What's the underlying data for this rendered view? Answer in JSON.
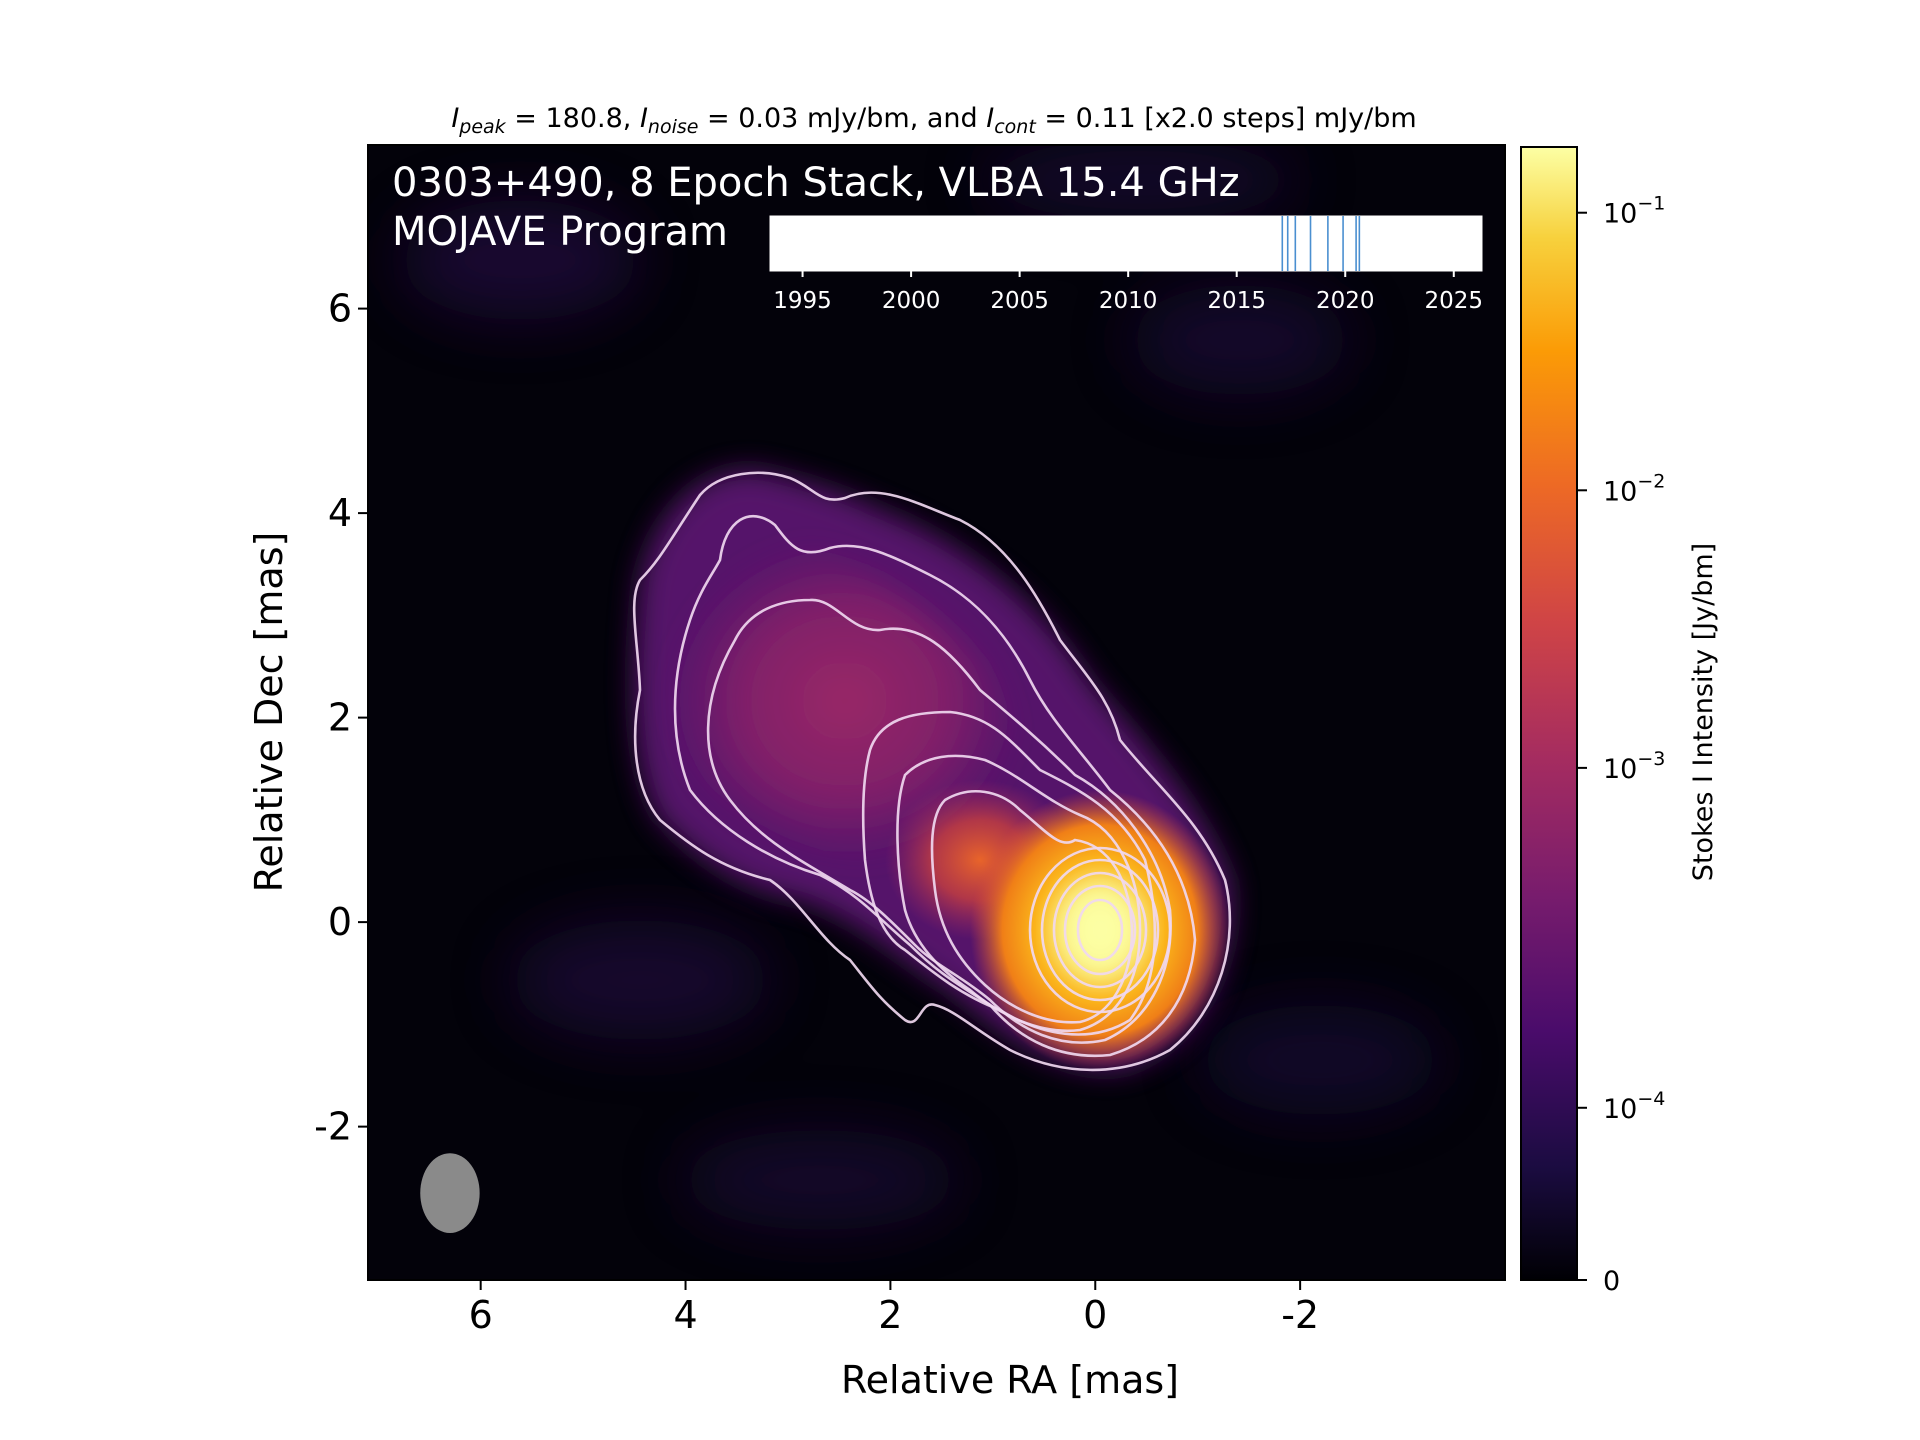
{
  "chart_data": {
    "type": "heatmap",
    "title_parts": {
      "peak_sub": "peak",
      "peak_value": " = 180.8, ",
      "noise_sub": "noise",
      "noise_value": " = 0.03 mJy/bm, and ",
      "cont_sub": "cont",
      "cont_value": " = 0.11 [x2.0 steps] mJy/bm"
    },
    "annotation_line1": "0303+490, 8 Epoch Stack, VLBA 15.4 GHz",
    "annotation_line2": "MOJAVE Program",
    "xlabel": "Relative RA [mas]",
    "ylabel": "Relative Dec [mas]",
    "xlim": [
      7.1,
      -4.0
    ],
    "ylim": [
      -3.5,
      7.6
    ],
    "x_ticks": [
      6,
      4,
      2,
      0,
      -2
    ],
    "y_ticks": [
      6,
      4,
      2,
      0,
      -2
    ],
    "x_tick_labels": [
      "6",
      "4",
      "2",
      "0",
      "-2"
    ],
    "y_tick_labels": [
      "6",
      "4",
      "2",
      "0",
      "-2"
    ],
    "colorbar": {
      "label": "Stokes I Intensity [Jy/bm]",
      "colormap": "inferno",
      "ticks": [
        {
          "label": "10",
          "exp": "−1",
          "frac": 0.942
        },
        {
          "label": "10",
          "exp": "−2",
          "frac": 0.697
        },
        {
          "label": "10",
          "exp": "−3",
          "frac": 0.452
        },
        {
          "label": "10",
          "exp": "−4",
          "frac": 0.152
        },
        {
          "label": "0",
          "exp": "",
          "frac": 0.0
        }
      ]
    },
    "epoch_timeline": {
      "xlim": [
        1993.5,
        2026.3
      ],
      "ticks": [
        1995,
        2000,
        2005,
        2010,
        2015,
        2020,
        2025
      ],
      "tick_labels": [
        "1995",
        "2000",
        "2005",
        "2010",
        "2015",
        "2020",
        "2025"
      ],
      "epochs": [
        2017.1,
        2017.35,
        2017.7,
        2018.4,
        2019.2,
        2019.9,
        2020.5,
        2020.65
      ]
    },
    "beam": {
      "ra": 6.3,
      "dec": -2.65,
      "major_mas": 0.78,
      "minor_mas": 0.58,
      "pa_deg": 0
    },
    "source_components": [
      {
        "ra": 0.0,
        "dec": 0.0,
        "flux_jy": 0.1808
      },
      {
        "ra": 1.2,
        "dec": 0.8,
        "flux_jy": 0.0042
      },
      {
        "ra": 2.9,
        "dec": 2.0,
        "flux_jy": 0.0011
      },
      {
        "ra": 3.5,
        "dec": 3.6,
        "flux_jy": 0.0004
      }
    ]
  }
}
